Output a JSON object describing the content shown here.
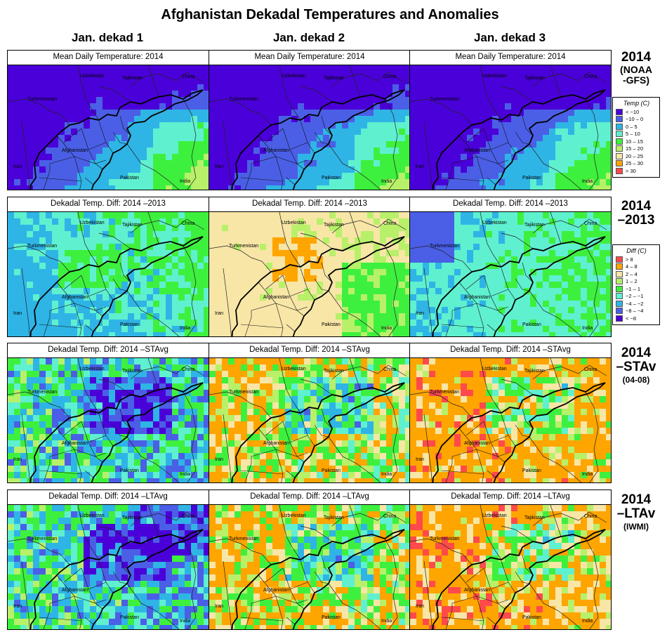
{
  "title": "Afghanistan Dekadal Temperatures and Anomalies",
  "columns": [
    "Jan. dekad 1",
    "Jan. dekad 2",
    "Jan. dekad 3"
  ],
  "rows": [
    {
      "id": "mean",
      "panel_title": "Mean Daily Temperature: 2014",
      "label_lines": [
        "2014",
        "(NOAA",
        "-GFS)"
      ],
      "legend": "temp"
    },
    {
      "id": "diff2013",
      "panel_title": "Dekadal Temp. Diff: 2014 –2013",
      "label_lines": [
        "2014",
        "–2013"
      ],
      "legend": "diff"
    },
    {
      "id": "diffstavg",
      "panel_title": "Dekadal Temp. Diff: 2014 –STAvg",
      "label_lines": [
        "2014",
        "–STAv",
        "(04-08)"
      ],
      "legend": null
    },
    {
      "id": "diffltavg",
      "panel_title": "Dekadal Temp. Diff: 2014 –LTAvg",
      "label_lines": [
        "2014",
        "–LTAv",
        "(IWMI)"
      ],
      "legend": null
    }
  ],
  "map_labels": [
    "Uzbekistan",
    "Tajikistan",
    "China",
    "Turkmenistan",
    "Afghanistan",
    "Iran",
    "Pakistan",
    "India"
  ],
  "legend_temp": {
    "title": "Temp (C)",
    "entries": [
      {
        "label": "< −10",
        "color": "#4a00d8"
      },
      {
        "label": "−10 – 0",
        "color": "#4a5fe6"
      },
      {
        "label": "0 – 5",
        "color": "#2fb4e6"
      },
      {
        "label": "5 – 10",
        "color": "#5ff0d0"
      },
      {
        "label": "10 – 15",
        "color": "#3ef03e"
      },
      {
        "label": "15 – 20",
        "color": "#b8f06a"
      },
      {
        "label": "20 – 25",
        "color": "#f7e6a6"
      },
      {
        "label": "25 – 30",
        "color": "#ffa500"
      },
      {
        "label": "> 30",
        "color": "#ff4a4a"
      }
    ]
  },
  "legend_diff": {
    "title": "Diff (C)",
    "entries": [
      {
        "label": "> 8",
        "color": "#ff4a4a"
      },
      {
        "label": "4 – 8",
        "color": "#ffa500"
      },
      {
        "label": "2 – 4",
        "color": "#f7e6a6"
      },
      {
        "label": "1 – 2",
        "color": "#b8f06a"
      },
      {
        "label": "−1 – 1",
        "color": "#3ef03e"
      },
      {
        "label": "−2 – −1",
        "color": "#5ff0d0"
      },
      {
        "label": "−4 – −2",
        "color": "#2fb4e6"
      },
      {
        "label": "−8 – −4",
        "color": "#4a5fe6"
      },
      {
        "label": "< −8",
        "color": "#4a00d8"
      }
    ]
  }
}
